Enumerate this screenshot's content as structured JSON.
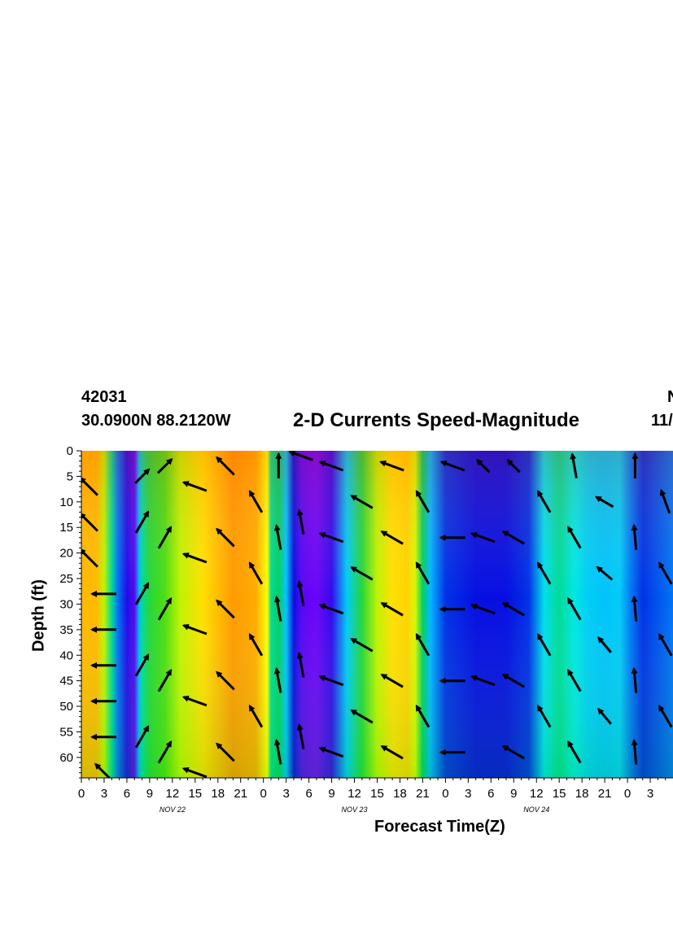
{
  "header": {
    "station_id": "42031",
    "coords": "30.0900N 88.2120W",
    "title": "2-D Currents Speed-Magnitude",
    "right_top": "N",
    "right_bottom": "11/"
  },
  "chart_data": {
    "type": "heatmap",
    "title": "2-D Currents Speed-Magnitude",
    "xlabel": "Forecast Time(Z)",
    "ylabel": "Depth (ft)",
    "x_tick_labels": [
      "0",
      "3",
      "6",
      "9",
      "12",
      "15",
      "18",
      "21",
      "0",
      "3",
      "6",
      "9",
      "12",
      "15",
      "18",
      "21",
      "0",
      "3",
      "6",
      "9",
      "12",
      "15",
      "18",
      "21",
      "0",
      "3"
    ],
    "x_range_hours": [
      0,
      78
    ],
    "y_tick_labels": [
      "0",
      "5",
      "10",
      "15",
      "20",
      "25",
      "30",
      "35",
      "40",
      "45",
      "50",
      "55",
      "60"
    ],
    "y_range_ft": [
      0,
      64
    ],
    "date_labels": [
      {
        "text": "NOV 22",
        "hour": 12
      },
      {
        "text": "NOV 23",
        "hour": 36
      },
      {
        "text": "NOV 24",
        "hour": 60
      }
    ],
    "colormap": [
      "#8f00ff",
      "#0010e0",
      "#00b8ff",
      "#00e8e8",
      "#00d060",
      "#60e000",
      "#ffff00",
      "#ffb000",
      "#ff4000"
    ],
    "speed_profile_by_hour": [
      [
        0,
        0.86
      ],
      [
        2,
        0.86
      ],
      [
        3,
        0.7
      ],
      [
        4,
        0.45
      ],
      [
        4.8,
        0.2
      ],
      [
        6,
        0.1
      ],
      [
        7,
        0.05
      ],
      [
        7.6,
        0.25
      ],
      [
        8,
        0.45
      ],
      [
        9,
        0.55
      ],
      [
        11,
        0.6
      ],
      [
        13,
        0.7
      ],
      [
        16,
        0.8
      ],
      [
        20,
        0.9
      ],
      [
        23,
        0.88
      ],
      [
        24.5,
        0.75
      ],
      [
        25,
        0.45
      ],
      [
        26,
        0.5
      ],
      [
        27,
        0.28
      ],
      [
        28,
        0.12
      ],
      [
        29,
        0.05
      ],
      [
        31,
        0.03
      ],
      [
        33,
        0.08
      ],
      [
        35,
        0.3
      ],
      [
        37,
        0.55
      ],
      [
        39,
        0.7
      ],
      [
        41,
        0.8
      ],
      [
        43,
        0.82
      ],
      [
        44,
        0.72
      ],
      [
        45,
        0.5
      ],
      [
        46,
        0.25
      ],
      [
        48,
        0.15
      ],
      [
        52,
        0.12
      ],
      [
        56,
        0.12
      ],
      [
        59,
        0.15
      ],
      [
        61,
        0.35
      ],
      [
        63,
        0.45
      ],
      [
        65,
        0.38
      ],
      [
        67,
        0.3
      ],
      [
        69,
        0.28
      ],
      [
        71,
        0.3
      ],
      [
        72.5,
        0.2
      ],
      [
        74,
        0.15
      ],
      [
        78,
        0.2
      ]
    ],
    "arrows": [
      {
        "hour": 1,
        "depth": 7,
        "dir": 135,
        "len": 1
      },
      {
        "hour": 1,
        "depth": 14,
        "dir": 135,
        "len": 1
      },
      {
        "hour": 1,
        "depth": 21,
        "dir": 135,
        "len": 1
      },
      {
        "hour": 3,
        "depth": 28,
        "dir": 180,
        "len": 1
      },
      {
        "hour": 3,
        "depth": 35,
        "dir": 180,
        "len": 1
      },
      {
        "hour": 3,
        "depth": 42,
        "dir": 180,
        "len": 1
      },
      {
        "hour": 3,
        "depth": 49,
        "dir": 180,
        "len": 1
      },
      {
        "hour": 3,
        "depth": 56,
        "dir": 180,
        "len": 1
      },
      {
        "hour": 3,
        "depth": 63,
        "dir": 135,
        "len": 1
      },
      {
        "hour": 8,
        "depth": 5,
        "dir": 45,
        "len": 0.8
      },
      {
        "hour": 8,
        "depth": 14,
        "dir": 60,
        "len": 1
      },
      {
        "hour": 8,
        "depth": 28,
        "dir": 60,
        "len": 1
      },
      {
        "hour": 8,
        "depth": 42,
        "dir": 60,
        "len": 1
      },
      {
        "hour": 8,
        "depth": 56,
        "dir": 60,
        "len": 1
      },
      {
        "hour": 11,
        "depth": 3,
        "dir": 45,
        "len": 0.8
      },
      {
        "hour": 11,
        "depth": 17,
        "dir": 60,
        "len": 1
      },
      {
        "hour": 11,
        "depth": 31,
        "dir": 60,
        "len": 1
      },
      {
        "hour": 11,
        "depth": 45,
        "dir": 60,
        "len": 1
      },
      {
        "hour": 11,
        "depth": 59,
        "dir": 60,
        "len": 1
      },
      {
        "hour": 15,
        "depth": 7,
        "dir": 160,
        "len": 1
      },
      {
        "hour": 15,
        "depth": 21,
        "dir": 160,
        "len": 1
      },
      {
        "hour": 15,
        "depth": 35,
        "dir": 160,
        "len": 1
      },
      {
        "hour": 15,
        "depth": 49,
        "dir": 160,
        "len": 1
      },
      {
        "hour": 15,
        "depth": 63,
        "dir": 160,
        "len": 1
      },
      {
        "hour": 19,
        "depth": 3,
        "dir": 135,
        "len": 1
      },
      {
        "hour": 19,
        "depth": 17,
        "dir": 135,
        "len": 1
      },
      {
        "hour": 19,
        "depth": 31,
        "dir": 135,
        "len": 1
      },
      {
        "hour": 19,
        "depth": 45,
        "dir": 135,
        "len": 1
      },
      {
        "hour": 19,
        "depth": 59,
        "dir": 135,
        "len": 1
      },
      {
        "hour": 23,
        "depth": 10,
        "dir": 120,
        "len": 1
      },
      {
        "hour": 23,
        "depth": 24,
        "dir": 120,
        "len": 1
      },
      {
        "hour": 23,
        "depth": 38,
        "dir": 120,
        "len": 1
      },
      {
        "hour": 23,
        "depth": 52,
        "dir": 120,
        "len": 1
      },
      {
        "hour": 26,
        "depth": 3,
        "dir": 90,
        "len": 1
      },
      {
        "hour": 26,
        "depth": 17,
        "dir": 100,
        "len": 1
      },
      {
        "hour": 26,
        "depth": 31,
        "dir": 100,
        "len": 1
      },
      {
        "hour": 26,
        "depth": 45,
        "dir": 100,
        "len": 1
      },
      {
        "hour": 26,
        "depth": 59,
        "dir": 100,
        "len": 1
      },
      {
        "hour": 29,
        "depth": 1,
        "dir": 160,
        "len": 1
      },
      {
        "hour": 29,
        "depth": 14,
        "dir": 100,
        "len": 1
      },
      {
        "hour": 29,
        "depth": 28,
        "dir": 100,
        "len": 1
      },
      {
        "hour": 29,
        "depth": 42,
        "dir": 100,
        "len": 1
      },
      {
        "hour": 29,
        "depth": 56,
        "dir": 100,
        "len": 1
      },
      {
        "hour": 33,
        "depth": 3,
        "dir": 160,
        "len": 1
      },
      {
        "hour": 33,
        "depth": 17,
        "dir": 160,
        "len": 1
      },
      {
        "hour": 33,
        "depth": 31,
        "dir": 160,
        "len": 1
      },
      {
        "hour": 33,
        "depth": 45,
        "dir": 160,
        "len": 1
      },
      {
        "hour": 33,
        "depth": 59,
        "dir": 160,
        "len": 1
      },
      {
        "hour": 37,
        "depth": 10,
        "dir": 150,
        "len": 1
      },
      {
        "hour": 37,
        "depth": 24,
        "dir": 150,
        "len": 1
      },
      {
        "hour": 37,
        "depth": 38,
        "dir": 150,
        "len": 1
      },
      {
        "hour": 37,
        "depth": 52,
        "dir": 150,
        "len": 1
      },
      {
        "hour": 41,
        "depth": 3,
        "dir": 160,
        "len": 1
      },
      {
        "hour": 41,
        "depth": 17,
        "dir": 150,
        "len": 1
      },
      {
        "hour": 41,
        "depth": 31,
        "dir": 150,
        "len": 1
      },
      {
        "hour": 41,
        "depth": 45,
        "dir": 150,
        "len": 1
      },
      {
        "hour": 41,
        "depth": 59,
        "dir": 150,
        "len": 1
      },
      {
        "hour": 45,
        "depth": 10,
        "dir": 120,
        "len": 1
      },
      {
        "hour": 45,
        "depth": 24,
        "dir": 120,
        "len": 1
      },
      {
        "hour": 45,
        "depth": 38,
        "dir": 120,
        "len": 1
      },
      {
        "hour": 45,
        "depth": 52,
        "dir": 120,
        "len": 1
      },
      {
        "hour": 49,
        "depth": 3,
        "dir": 160,
        "len": 1
      },
      {
        "hour": 49,
        "depth": 17,
        "dir": 180,
        "len": 1
      },
      {
        "hour": 49,
        "depth": 31,
        "dir": 180,
        "len": 1
      },
      {
        "hour": 49,
        "depth": 45,
        "dir": 180,
        "len": 1
      },
      {
        "hour": 49,
        "depth": 59,
        "dir": 180,
        "len": 1
      },
      {
        "hour": 53,
        "depth": 3,
        "dir": 135,
        "len": 0.7
      },
      {
        "hour": 53,
        "depth": 17,
        "dir": 160,
        "len": 1
      },
      {
        "hour": 53,
        "depth": 31,
        "dir": 160,
        "len": 1
      },
      {
        "hour": 53,
        "depth": 45,
        "dir": 160,
        "len": 1
      },
      {
        "hour": 57,
        "depth": 3,
        "dir": 135,
        "len": 0.7
      },
      {
        "hour": 57,
        "depth": 17,
        "dir": 150,
        "len": 1
      },
      {
        "hour": 57,
        "depth": 31,
        "dir": 150,
        "len": 1
      },
      {
        "hour": 57,
        "depth": 45,
        "dir": 150,
        "len": 1
      },
      {
        "hour": 57,
        "depth": 59,
        "dir": 150,
        "len": 1
      },
      {
        "hour": 61,
        "depth": 10,
        "dir": 120,
        "len": 1
      },
      {
        "hour": 61,
        "depth": 24,
        "dir": 120,
        "len": 1
      },
      {
        "hour": 61,
        "depth": 38,
        "dir": 120,
        "len": 1
      },
      {
        "hour": 61,
        "depth": 52,
        "dir": 120,
        "len": 1
      },
      {
        "hour": 65,
        "depth": 3,
        "dir": 100,
        "len": 1
      },
      {
        "hour": 65,
        "depth": 17,
        "dir": 120,
        "len": 1
      },
      {
        "hour": 65,
        "depth": 31,
        "dir": 120,
        "len": 1
      },
      {
        "hour": 65,
        "depth": 45,
        "dir": 120,
        "len": 1
      },
      {
        "hour": 65,
        "depth": 59,
        "dir": 120,
        "len": 1
      },
      {
        "hour": 69,
        "depth": 10,
        "dir": 150,
        "len": 0.8
      },
      {
        "hour": 69,
        "depth": 24,
        "dir": 140,
        "len": 0.8
      },
      {
        "hour": 69,
        "depth": 38,
        "dir": 130,
        "len": 0.8
      },
      {
        "hour": 69,
        "depth": 52,
        "dir": 130,
        "len": 0.8
      },
      {
        "hour": 73,
        "depth": 3,
        "dir": 90,
        "len": 1
      },
      {
        "hour": 73,
        "depth": 17,
        "dir": 95,
        "len": 1
      },
      {
        "hour": 73,
        "depth": 31,
        "dir": 95,
        "len": 1
      },
      {
        "hour": 73,
        "depth": 45,
        "dir": 95,
        "len": 1
      },
      {
        "hour": 73,
        "depth": 59,
        "dir": 95,
        "len": 1
      },
      {
        "hour": 77,
        "depth": 10,
        "dir": 110,
        "len": 1
      },
      {
        "hour": 77,
        "depth": 24,
        "dir": 120,
        "len": 1
      },
      {
        "hour": 77,
        "depth": 38,
        "dir": 120,
        "len": 1
      },
      {
        "hour": 77,
        "depth": 52,
        "dir": 120,
        "len": 1
      }
    ]
  }
}
